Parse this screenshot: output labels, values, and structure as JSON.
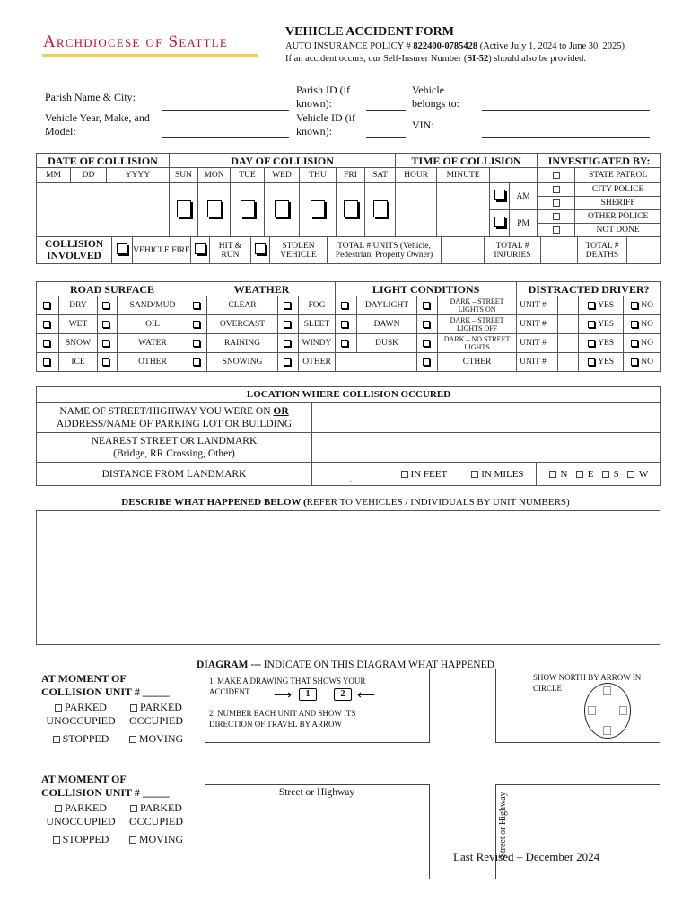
{
  "logo_text": "Archdiocese of Seattle",
  "header": {
    "title": "VEHICLE ACCIDENT FORM",
    "policy_prefix": "AUTO INSURANCE POLICY # ",
    "policy_number": "822400-0785428",
    "policy_period": " (Active July 1, 2024 to June 30, 2025)",
    "self_insurer_prefix": "If an accident occurs, our Self-Insurer Number (",
    "self_insurer_number": "SI-52",
    "self_insurer_suffix": ") should also be provided."
  },
  "fields": {
    "parish_name": "Parish Name & City:",
    "vehicle_ymm": "Vehicle Year, Make, and Model:",
    "parish_id": "Parish ID (if known):",
    "vehicle_id": "Vehicle ID (if known):",
    "belongs_to": "Vehicle belongs to:",
    "vin": "VIN:"
  },
  "collision_table": {
    "date_header": "DATE OF COLLISION",
    "day_header": "DAY OF COLLISION",
    "time_header": "TIME OF COLLISION",
    "investigated_header": "INVESTIGATED BY:",
    "date_cols": [
      "MM",
      "DD",
      "YYYY"
    ],
    "days": [
      "SUN",
      "MON",
      "TUE",
      "WED",
      "THU",
      "FRI",
      "SAT"
    ],
    "time_cols": [
      "HOUR",
      "MINUTE"
    ],
    "am": "AM",
    "pm": "PM",
    "investigators": [
      "STATE PATROL",
      "CITY POLICE",
      "SHERIFF",
      "OTHER POLICE",
      "NOT DONE"
    ],
    "collision_involved": "COLLISION INVOLVED",
    "vehicle_fire": "VEHICLE FIRE",
    "hit_run": "HIT & RUN",
    "stolen": "STOLEN VEHICLE",
    "total_units": "TOTAL # UNITS (Vehicle, Pedestrian, Property Owner)",
    "total_injuries": "TOTAL # INJURIES",
    "total_deaths": "TOTAL # DEATHS"
  },
  "conditions": {
    "headers": [
      "ROAD SURFACE",
      "WEATHER",
      "LIGHT CONDITIONS",
      "DISTRACTED DRIVER?"
    ],
    "road": [
      [
        "DRY",
        "SAND/MUD"
      ],
      [
        "WET",
        "OIL"
      ],
      [
        "SNOW",
        "WATER"
      ],
      [
        "ICE",
        "OTHER"
      ]
    ],
    "weather": [
      [
        "CLEAR",
        "FOG"
      ],
      [
        "OVERCAST",
        "SLEET"
      ],
      [
        "RAINING",
        "WINDY"
      ],
      [
        "SNOWING",
        "OTHER"
      ]
    ],
    "light": [
      [
        "DAYLIGHT",
        "DARK – STREET LIGHTS ON"
      ],
      [
        "DAWN",
        "DARK – STREET LIGHTS OFF"
      ],
      [
        "DUSK",
        "DARK – NO STREET LIGHTS"
      ],
      [
        "",
        "OTHER"
      ]
    ],
    "unit_label": "UNIT #",
    "yes": "YES",
    "no": "NO"
  },
  "location": {
    "header": "LOCATION WHERE COLLISION OCCURED",
    "street_a": "NAME OF STREET/HIGHWAY YOU WERE ON ",
    "street_or": "OR",
    "street_b": "ADDRESS/NAME OF PARKING LOT OR BUILDING",
    "nearest": "NEAREST STREET OR LANDMARK",
    "nearest_sub": "(Bridge, RR Crossing, Other)",
    "distance": "DISTANCE FROM LANDMARK",
    "dot": ".",
    "in_feet": "IN FEET",
    "in_miles": "IN MILES",
    "directions": [
      "N",
      "E",
      "S",
      "W"
    ]
  },
  "describe": {
    "bold": "DESCRIBE WHAT HAPPENED BELOW (",
    "rest": "REFER TO VEHICLES / INDIVIDUALS BY UNIT NUMBERS)"
  },
  "diagram": {
    "title_bold": "DIAGRAM ---",
    "title_rest": " INDICATE ON THIS DIAGRAM WHAT HAPPENED",
    "step1": "1. MAKE A DRAWING THAT SHOWS YOUR ACCIDENT",
    "unit1": "1",
    "unit2": "2",
    "step2": "2. NUMBER EACH UNIT AND SHOW ITS DIRECTION OF TRAVEL BY ARROW",
    "north": "SHOW NORTH BY ARROW IN CIRCLE",
    "street_h": "Street or Highway",
    "street_v": "Street or Highway",
    "units": [
      {
        "title": "AT MOMENT OF COLLISION UNIT # _____",
        "opts": [
          "PARKED UNOCCUPIED",
          "PARKED OCCUPIED",
          "STOPPED",
          "MOVING"
        ]
      },
      {
        "title": "AT MOMENT OF COLLISION UNIT # _____",
        "opts": [
          "PARKED UNOCCUPIED",
          "PARKED OCCUPIED",
          "STOPPED",
          "MOVING"
        ]
      }
    ]
  },
  "footer": "Last Revised – December 2024",
  "colors": {
    "logo": "#c8102e",
    "logo_bar": "#f2d04b"
  }
}
